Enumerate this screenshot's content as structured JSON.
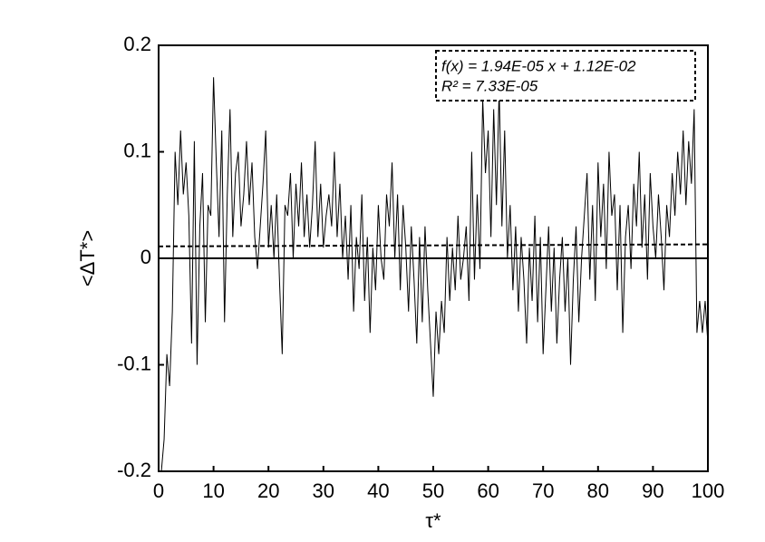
{
  "chart_data": {
    "type": "line",
    "xlabel": "τ*",
    "ylabel": "<ΔT*>",
    "xlim": [
      0,
      100
    ],
    "ylim": [
      -0.2,
      0.2
    ],
    "xticks": [
      0,
      10,
      20,
      30,
      40,
      50,
      60,
      70,
      80,
      90,
      100
    ],
    "yticks": [
      -0.2,
      -0.1,
      0,
      0.1,
      0.2
    ],
    "x": [
      0,
      0.5,
      1,
      1.5,
      2,
      2.5,
      3,
      3.5,
      4,
      4.5,
      5,
      5.5,
      6,
      6.5,
      7,
      7.5,
      8,
      8.5,
      9,
      9.5,
      10,
      10.5,
      11,
      11.5,
      12,
      12.5,
      13,
      13.5,
      14,
      14.5,
      15,
      15.5,
      16,
      16.5,
      17,
      17.5,
      18,
      18.5,
      19,
      19.5,
      20,
      20.5,
      21,
      21.5,
      22,
      22.5,
      23,
      23.5,
      24,
      24.5,
      25,
      25.5,
      26,
      26.5,
      27,
      27.5,
      28,
      28.5,
      29,
      29.5,
      30,
      30.5,
      31,
      31.5,
      32,
      32.5,
      33,
      33.5,
      34,
      34.5,
      35,
      35.5,
      36,
      36.5,
      37,
      37.5,
      38,
      38.5,
      39,
      39.5,
      40,
      40.5,
      41,
      41.5,
      42,
      42.5,
      43,
      43.5,
      44,
      44.5,
      45,
      45.5,
      46,
      46.5,
      47,
      47.5,
      48,
      48.5,
      49,
      49.5,
      50,
      50.5,
      51,
      51.5,
      52,
      52.5,
      53,
      53.5,
      54,
      54.5,
      55,
      55.5,
      56,
      56.5,
      57,
      57.5,
      58,
      58.5,
      59,
      59.5,
      60,
      60.5,
      61,
      61.5,
      62,
      62.5,
      63,
      63.5,
      64,
      64.5,
      65,
      65.5,
      66,
      66.5,
      67,
      67.5,
      68,
      68.5,
      69,
      69.5,
      70,
      70.5,
      71,
      71.5,
      72,
      72.5,
      73,
      73.5,
      74,
      74.5,
      75,
      75.5,
      76,
      76.5,
      77,
      77.5,
      78,
      78.5,
      79,
      79.5,
      80,
      80.5,
      81,
      81.5,
      82,
      82.5,
      83,
      83.5,
      84,
      84.5,
      85,
      85.5,
      86,
      86.5,
      87,
      87.5,
      88,
      88.5,
      89,
      89.5,
      90,
      90.5,
      91,
      91.5,
      92,
      92.5,
      93,
      93.5,
      94,
      94.5,
      95,
      95.5,
      96,
      96.5,
      97,
      97.5,
      98,
      98.5,
      99,
      99.5,
      100
    ],
    "series": [
      {
        "color": "#000000",
        "values": [
          -0.2,
          -0.2,
          -0.17,
          -0.09,
          -0.12,
          -0.05,
          0.1,
          0.05,
          0.12,
          0.06,
          0.09,
          0.04,
          -0.08,
          0.11,
          -0.1,
          0.03,
          0.08,
          -0.06,
          0.05,
          0.04,
          0.17,
          0.09,
          0.02,
          0.12,
          -0.06,
          0.06,
          0.14,
          0.02,
          0.08,
          0.1,
          0.03,
          0.06,
          0.11,
          0.05,
          0.09,
          0.02,
          -0.01,
          0.03,
          0.07,
          0.12,
          0.01,
          0.05,
          0,
          0.06,
          -0.02,
          -0.09,
          0.05,
          0.04,
          0.08,
          0,
          0.07,
          0.03,
          0.09,
          0.02,
          0.06,
          0.01,
          0.05,
          0.11,
          0.02,
          0.07,
          0.01,
          0.04,
          0.06,
          0.03,
          0.1,
          0.02,
          0.07,
          0,
          0.04,
          -0.02,
          0.05,
          -0.05,
          0.02,
          -0.01,
          0.06,
          -0.04,
          0.02,
          -0.07,
          0.01,
          -0.03,
          0.05,
          0,
          -0.02,
          0.06,
          0.03,
          0.09,
          0,
          0.06,
          -0.03,
          0.05,
          0.01,
          -0.05,
          0.03,
          -0.02,
          -0.08,
          0.02,
          -0.06,
          0.03,
          -0.03,
          -0.08,
          -0.13,
          -0.05,
          -0.09,
          -0.04,
          -0.07,
          0.02,
          -0.04,
          0.01,
          -0.03,
          0.04,
          -0.02,
          0,
          0.03,
          -0.04,
          0.1,
          -0.02,
          0.06,
          -0.01,
          0.15,
          0.08,
          0.12,
          0.02,
          0.14,
          0.05,
          0.16,
          0.03,
          0.12,
          0,
          0.05,
          -0.03,
          0.03,
          -0.05,
          0.02,
          -0.02,
          -0.08,
          0.01,
          -0.04,
          0.04,
          -0.06,
          0.02,
          -0.09,
          -0.03,
          0.03,
          -0.05,
          0.01,
          -0.08,
          -0.02,
          0.02,
          -0.05,
          0,
          -0.1,
          -0.02,
          0.03,
          -0.06,
          0,
          0.04,
          0.08,
          -0.02,
          0.05,
          -0.04,
          0.09,
          0.02,
          0.07,
          -0.01,
          0.1,
          0.04,
          0.06,
          -0.03,
          0.05,
          -0.07,
          0.02,
          0.05,
          -0.01,
          0.07,
          0.03,
          0.1,
          0.01,
          0.06,
          -0.02,
          0.08,
          0.03,
          0,
          0.06,
          0.02,
          -0.03,
          0.05,
          0.02,
          0.08,
          0.04,
          0.1,
          0.06,
          0.12,
          0.05,
          0.11,
          0.07,
          0.14,
          -0.07,
          -0.04,
          -0.07,
          -0.04,
          -0.08
        ]
      }
    ],
    "trendline": {
      "x": [
        0,
        100
      ],
      "values": [
        0.0112,
        0.0131
      ],
      "color": "#000000",
      "style": "dashed"
    },
    "annotations": [
      "f(x) = 1.94E-05 x + 1.12E-02",
      "R² = 7.33E-05"
    ]
  }
}
